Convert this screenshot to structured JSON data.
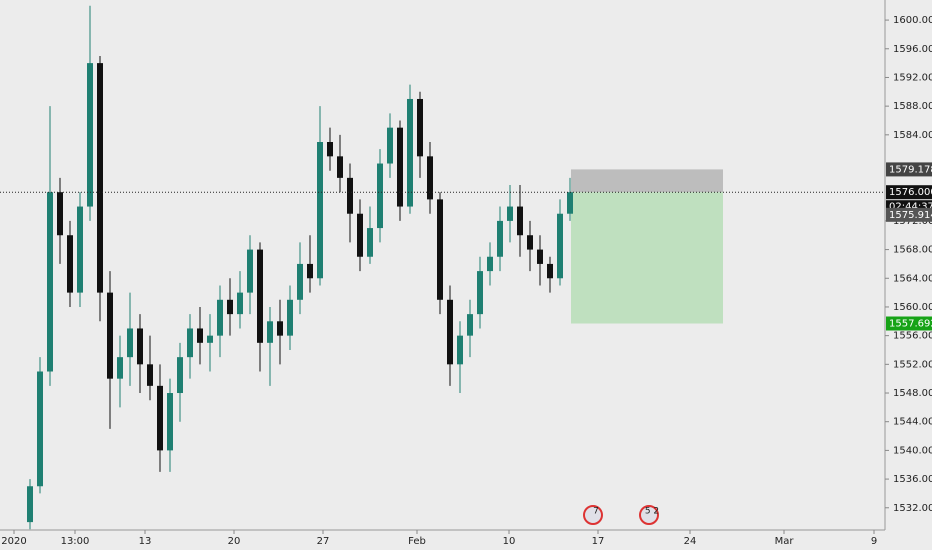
{
  "chart_data": {
    "type": "candlestick",
    "up_color": "#1f7f72",
    "down_color": "#111111",
    "xlim": [
      0,
      177
    ],
    "xticks": [
      {
        "value": 2.8,
        "label": "2020"
      },
      {
        "value": 15,
        "label": "13:00"
      },
      {
        "value": 29,
        "label": "13"
      },
      {
        "value": 46.8,
        "label": "20"
      },
      {
        "value": 64.6,
        "label": "27"
      },
      {
        "value": 83.4,
        "label": "Feb"
      },
      {
        "value": 101.8,
        "label": "10"
      },
      {
        "value": 119.6,
        "label": "17"
      },
      {
        "value": 138,
        "label": "24"
      },
      {
        "value": 156.8,
        "label": "Mar"
      },
      {
        "value": 174.8,
        "label": "9"
      }
    ],
    "ylim": [
      1528.9,
      1602.8
    ],
    "yticks": [
      {
        "value": 1532,
        "label": "1532.000"
      },
      {
        "value": 1536,
        "label": "1536.000"
      },
      {
        "value": 1540,
        "label": "1540.000"
      },
      {
        "value": 1544,
        "label": "1544.000"
      },
      {
        "value": 1548,
        "label": "1548.000"
      },
      {
        "value": 1552,
        "label": "1552.000"
      },
      {
        "value": 1556,
        "label": "1556.000"
      },
      {
        "value": 1560,
        "label": "1560.000"
      },
      {
        "value": 1564,
        "label": "1564.000"
      },
      {
        "value": 1568,
        "label": "1568.000"
      },
      {
        "value": 1572,
        "label": "1572.000"
      },
      {
        "value": 1584,
        "label": "1584.000"
      },
      {
        "value": 1588,
        "label": "1588.000"
      },
      {
        "value": 1592,
        "label": "1592.000"
      },
      {
        "value": 1596,
        "label": "1596.000"
      },
      {
        "value": 1600,
        "label": "1600.000"
      }
    ],
    "x": [
      6,
      8,
      10,
      12,
      14,
      16,
      18,
      20,
      22,
      24,
      26,
      28,
      30,
      32,
      34,
      36,
      38,
      40,
      42,
      44,
      46,
      48,
      50,
      52,
      54,
      56,
      58,
      60,
      62,
      64,
      66,
      68,
      70,
      72,
      74,
      76,
      78,
      80,
      82,
      84,
      86,
      88,
      90,
      92,
      94,
      96,
      98,
      100,
      102,
      104,
      106,
      108,
      110,
      112,
      114
    ],
    "open": [
      1530,
      1535,
      1551,
      1576,
      1570,
      1562,
      1574,
      1594,
      1562,
      1550,
      1553,
      1557,
      1552,
      1549,
      1540,
      1548,
      1553,
      1557,
      1555,
      1556,
      1561,
      1559,
      1562,
      1568,
      1555,
      1558,
      1556,
      1561,
      1566,
      1564,
      1583,
      1581,
      1578,
      1573,
      1567,
      1571,
      1580,
      1585,
      1574,
      1589,
      1581,
      1575,
      1561,
      1552,
      1556,
      1559,
      1565,
      1567,
      1572,
      1574,
      1570,
      1568,
      1566,
      1564,
      1573
    ],
    "high": [
      1536,
      1553,
      1588,
      1578,
      1572,
      1576,
      1602,
      1595,
      1565,
      1556,
      1562,
      1559,
      1556,
      1552,
      1550,
      1555,
      1559,
      1560,
      1559,
      1563,
      1564,
      1565,
      1570,
      1569,
      1560,
      1561,
      1563,
      1569,
      1570,
      1588,
      1585,
      1584,
      1580,
      1575,
      1574,
      1582,
      1587,
      1586,
      1591,
      1590,
      1583,
      1576,
      1563,
      1558,
      1561,
      1567,
      1569,
      1574,
      1577,
      1577,
      1572,
      1570,
      1567,
      1575,
      1578
    ],
    "low": [
      1529,
      1534,
      1549,
      1566,
      1560,
      1560,
      1572,
      1558,
      1543,
      1546,
      1549,
      1548,
      1547,
      1537,
      1537,
      1544,
      1550,
      1552,
      1551,
      1553,
      1556,
      1557,
      1559,
      1551,
      1549,
      1552,
      1554,
      1559,
      1562,
      1563,
      1579,
      1576,
      1569,
      1565,
      1566,
      1569,
      1578,
      1572,
      1573,
      1578,
      1573,
      1559,
      1549,
      1548,
      1553,
      1557,
      1563,
      1565,
      1569,
      1567,
      1565,
      1563,
      1562,
      1563,
      1572
    ],
    "close": [
      1535,
      1551,
      1576,
      1570,
      1562,
      1574,
      1594,
      1562,
      1550,
      1553,
      1557,
      1552,
      1549,
      1540,
      1548,
      1553,
      1557,
      1555,
      1556,
      1561,
      1559,
      1562,
      1568,
      1555,
      1558,
      1556,
      1561,
      1566,
      1564,
      1583,
      1581,
      1578,
      1573,
      1567,
      1571,
      1580,
      1585,
      1574,
      1589,
      1581,
      1575,
      1561,
      1552,
      1556,
      1559,
      1565,
      1567,
      1572,
      1574,
      1570,
      1568,
      1566,
      1564,
      1573,
      1576
    ],
    "position": {
      "x": [
        114.2,
        144.6
      ],
      "entry": 1576.0,
      "stop": 1579.178,
      "target": 1557.692
    },
    "price_labels": [
      {
        "value": 1579.178,
        "label": "1579.178",
        "color": "#444444"
      },
      {
        "value": 1576.0,
        "label": "1576.000",
        "color": "#111111"
      },
      {
        "value": 1575.914,
        "label": "1575.914",
        "color": "#555555"
      },
      {
        "value": 1557.692,
        "label": "1557.692",
        "color": "#17a317"
      }
    ],
    "countdown": "02:44:37",
    "events": [
      {
        "x": 118.6,
        "label": "7"
      },
      {
        "x": 129.8,
        "label": "5 2"
      }
    ]
  }
}
